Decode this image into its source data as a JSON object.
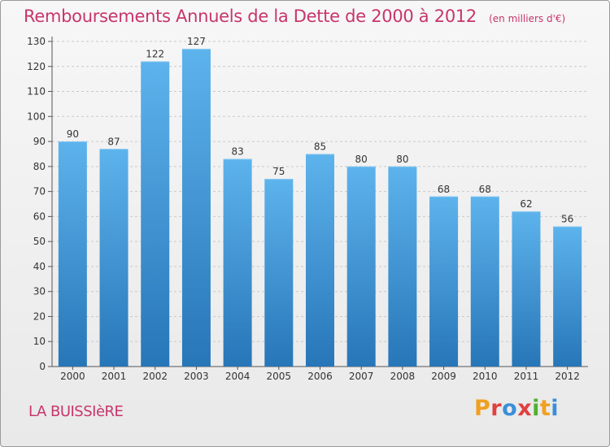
{
  "title": "Remboursements Annuels de la Dette de 2000 à 2012",
  "unit_note": "(en milliers d'€)",
  "commune": "LA BUISSIèRE",
  "logo": "Proxiti",
  "colors": {
    "title": "#c8356b",
    "bar_top": "#5db3ec",
    "bar_bottom": "#2776b8",
    "logo_letters": [
      "#f0a020",
      "#e04040",
      "#3a8fd8",
      "#e04040",
      "#50b030",
      "#f0a020",
      "#3a8fd8"
    ]
  },
  "chart_data": {
    "type": "bar",
    "title": "Remboursements Annuels de la Dette de 2000 à 2012",
    "xlabel": "",
    "ylabel": "",
    "categories": [
      "2000",
      "2001",
      "2002",
      "2003",
      "2004",
      "2005",
      "2006",
      "2007",
      "2008",
      "2009",
      "2010",
      "2011",
      "2012"
    ],
    "values": [
      90,
      87,
      122,
      127,
      83,
      75,
      85,
      80,
      80,
      68,
      68,
      62,
      56
    ],
    "ylim": [
      0,
      130
    ],
    "yticks": [
      0,
      10,
      20,
      30,
      40,
      50,
      60,
      70,
      80,
      90,
      100,
      110,
      120,
      130
    ],
    "grid": true,
    "legend": "none",
    "data_labels": true
  }
}
